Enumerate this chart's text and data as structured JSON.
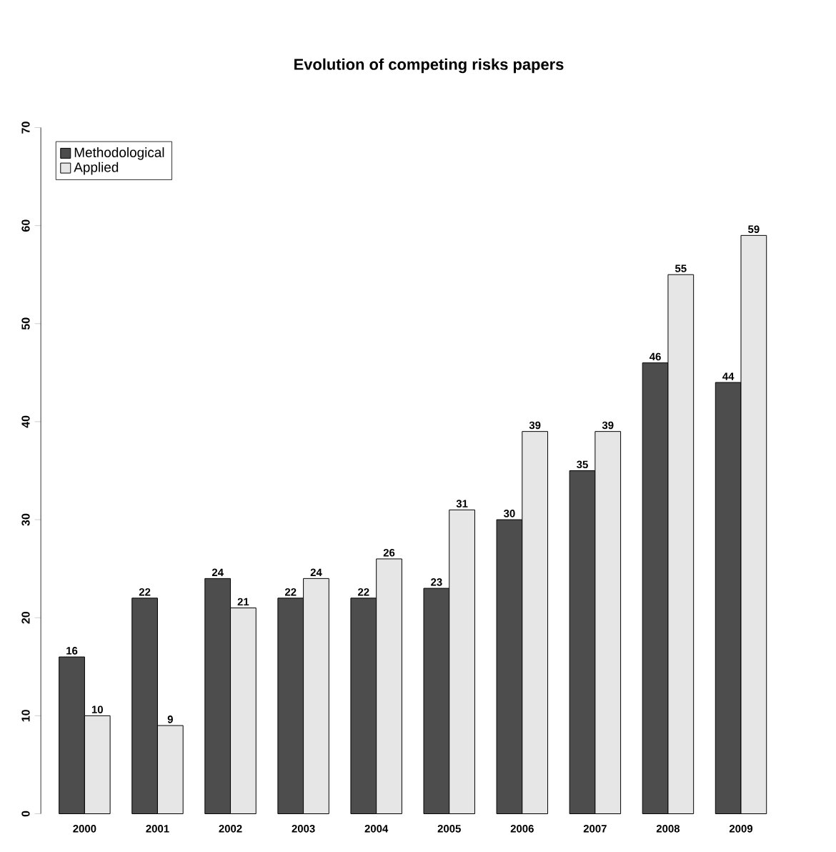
{
  "chart_data": {
    "type": "bar",
    "title": "Evolution of competing risks papers",
    "categories": [
      "2000",
      "2001",
      "2002",
      "2003",
      "2004",
      "2005",
      "2006",
      "2007",
      "2008",
      "2009"
    ],
    "series": [
      {
        "name": "Methodological",
        "color": "#4d4d4d",
        "values": [
          16,
          22,
          24,
          22,
          22,
          23,
          30,
          35,
          46,
          44
        ]
      },
      {
        "name": "Applied",
        "color": "#e6e6e6",
        "values": [
          10,
          9,
          21,
          24,
          26,
          31,
          39,
          39,
          55,
          59
        ]
      }
    ],
    "ylim": [
      0,
      70
    ],
    "yticks": [
      0,
      10,
      20,
      30,
      40,
      50,
      60,
      70
    ],
    "data_labels": true,
    "legend": "top left",
    "grid": false
  }
}
